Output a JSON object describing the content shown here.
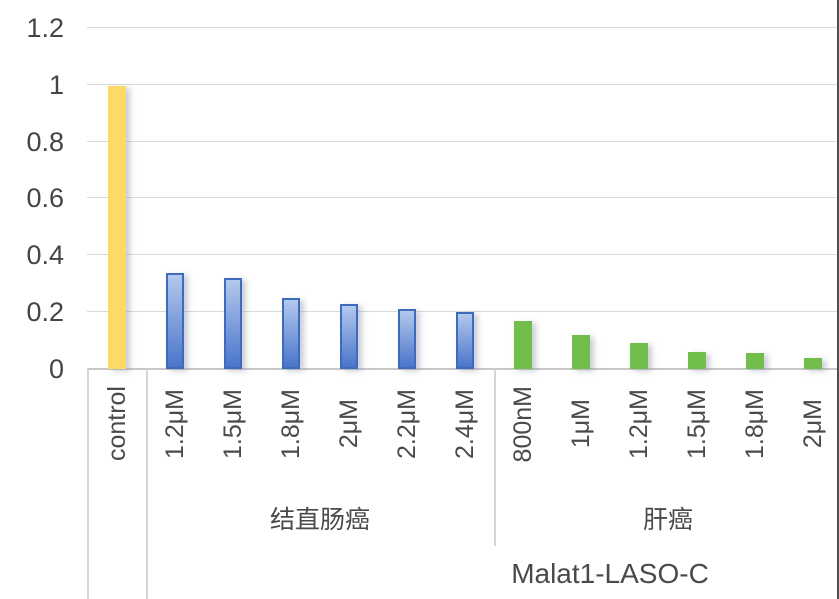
{
  "chart_data": {
    "type": "bar",
    "title": "",
    "y_axis": {
      "ylim": [
        0,
        1.2
      ],
      "tick_step": 0.2,
      "tick_values": [
        0,
        0.2,
        0.4,
        0.6,
        0.8,
        1,
        1.2
      ],
      "ticks": [
        "0",
        "0.2",
        "0.4",
        "0.6",
        "0.8",
        "1",
        "1.2"
      ],
      "grid": "on",
      "label": ""
    },
    "x_axis": {
      "group_title": "Malat1-LASO-C",
      "label_rotation_deg": 90
    },
    "legend": "none",
    "series": [
      {
        "id": "control",
        "group_label": "",
        "color": "#FFD966",
        "categories": [
          "control"
        ],
        "values": [
          1.0
        ]
      },
      {
        "id": "colorectal-cancer",
        "group_label": "结直肠癌",
        "color": "#4472C4",
        "fill_top": "#B3C9ED",
        "fill_bottom": "#4A75C9",
        "border": "#3F6BBE",
        "categories": [
          "1.2μM",
          "1.5μM",
          "1.8μM",
          "2μM",
          "2.2μM",
          "2.4μM"
        ],
        "values": [
          0.34,
          0.32,
          0.25,
          0.23,
          0.21,
          0.2
        ]
      },
      {
        "id": "liver-cancer",
        "group_label": "肝癌",
        "color": "#71BE4B",
        "categories": [
          "800nM",
          "1μM",
          "1.2μM",
          "1.5μM",
          "1.8μM",
          "2μM"
        ],
        "values": [
          0.17,
          0.12,
          0.09,
          0.06,
          0.055,
          0.04
        ]
      }
    ]
  },
  "window": {
    "right_edge_color": "#4D4D4D"
  }
}
